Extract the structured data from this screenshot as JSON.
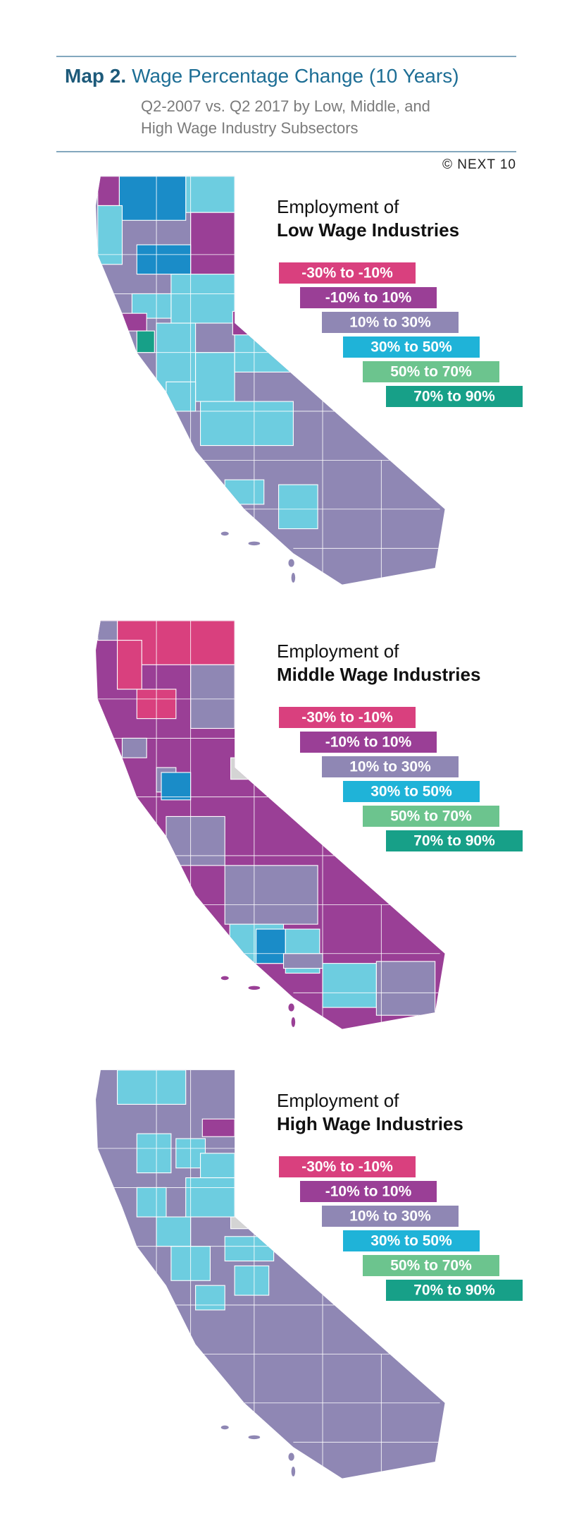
{
  "header": {
    "title_bold": "Map 2.",
    "title": "Wage Percentage Change (10 Years)",
    "subtitle": [
      "Q2-2007 vs. Q2 2017 by Low, Middle, and",
      "High Wage Industry Subsectors"
    ]
  },
  "credit": "© NEXT 10",
  "legend": [
    {
      "label": "-30% to -10%",
      "color": "#d9407e"
    },
    {
      "label": "-10% to 10%",
      "color": "#9a3f96"
    },
    {
      "label": "10% to 30%",
      "color": "#8f87b4"
    },
    {
      "label": "30% to 50%",
      "color": "#1fb3d8"
    },
    {
      "label": "50% to 70%",
      "color": "#6cc48e"
    },
    {
      "label": "70% to 90%",
      "color": "#17a088"
    }
  ],
  "maps": [
    {
      "heading": "Employment of",
      "subheading": "Low Wage Industries"
    },
    {
      "heading": "Employment of",
      "subheading": "Middle Wage Industries"
    },
    {
      "heading": "Employment of",
      "subheading": "High Wage Industries"
    }
  ]
}
